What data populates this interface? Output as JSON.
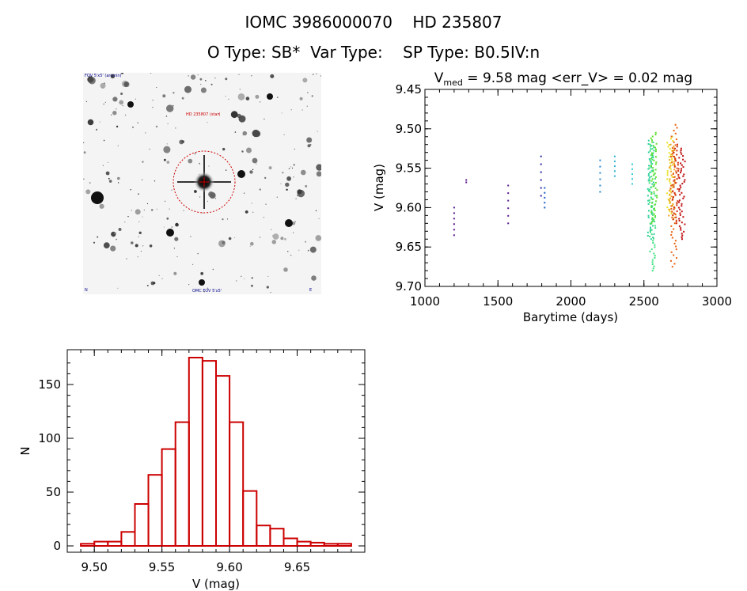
{
  "header": {
    "line1": "IOMC 3986000070    HD 235807",
    "line2": "O Type: SB*  Var Type:    SP Type: B0.5IV:n"
  },
  "image_panel": {
    "label_top_left": "FOV 5'x5' (arcmin)",
    "label_target": "HD 235807 (star)",
    "label_bottom_left": "N",
    "label_bottom_center": "OMC FOV 5'x5'",
    "label_bottom_right": "E",
    "target_color": "#cc0000"
  },
  "chart_data": [
    {
      "type": "scatter",
      "title": "V_med = 9.58 mag <err_V> = 0.02 mag",
      "title_parts": {
        "prefix": "V",
        "subscript": "med",
        "rest": " = 9.58 mag <err_V> = 0.02 mag"
      },
      "xlabel": "Barytime (days)",
      "ylabel": "V (mag)",
      "xlim": [
        1000,
        3000
      ],
      "ylim": [
        9.45,
        9.7
      ],
      "y_inverted": true,
      "xticks": [
        1000,
        1500,
        2000,
        2500,
        3000
      ],
      "yticks": [
        9.45,
        9.5,
        9.55,
        9.6,
        9.65,
        9.7
      ],
      "ytick_labels": [
        "9.45",
        "9.50",
        "9.55",
        "9.60",
        "9.65",
        "9.70"
      ],
      "color_scale": "rainbow (violet to red with increasing time)",
      "clusters": [
        {
          "x": 1200,
          "ymin": 9.6,
          "ymax": 9.635,
          "n": 6,
          "color": "#5a1a8c"
        },
        {
          "x": 1283,
          "ymin": 9.565,
          "ymax": 9.568,
          "n": 2,
          "color": "#5a1a8c"
        },
        {
          "x": 1570,
          "ymin": 9.572,
          "ymax": 9.62,
          "n": 6,
          "color": "#5a1a8c"
        },
        {
          "x": 1795,
          "ymin": 9.535,
          "ymax": 9.585,
          "n": 6,
          "color": "#2a2aa0"
        },
        {
          "x": 1820,
          "ymin": 9.575,
          "ymax": 9.6,
          "n": 5,
          "color": "#1a5ac8"
        },
        {
          "x": 2200,
          "ymin": 9.54,
          "ymax": 9.58,
          "n": 6,
          "color": "#2a8ad0"
        },
        {
          "x": 2300,
          "ymin": 9.535,
          "ymax": 9.56,
          "n": 5,
          "color": "#2ab0d0"
        },
        {
          "x": 2420,
          "ymin": 9.545,
          "ymax": 9.57,
          "n": 5,
          "color": "#30c8d8"
        },
        {
          "x": 2548,
          "ymin": 9.515,
          "ymax": 9.64,
          "n": 60,
          "color": "#30d0a0"
        },
        {
          "x": 2558,
          "ymin": 9.52,
          "ymax": 9.68,
          "n": 60,
          "color": "#40e080"
        },
        {
          "x": 2570,
          "ymin": 9.505,
          "ymax": 9.62,
          "n": 50,
          "color": "#60e030"
        },
        {
          "x": 2680,
          "ymin": 9.51,
          "ymax": 9.61,
          "n": 40,
          "color": "#e8e020"
        },
        {
          "x": 2692,
          "ymin": 9.52,
          "ymax": 9.615,
          "n": 40,
          "color": "#f0a020"
        },
        {
          "x": 2705,
          "ymin": 9.495,
          "ymax": 9.675,
          "n": 50,
          "color": "#e86010"
        },
        {
          "x": 2718,
          "ymin": 9.52,
          "ymax": 9.62,
          "n": 40,
          "color": "#d03010"
        },
        {
          "x": 2760,
          "ymin": 9.525,
          "ymax": 9.64,
          "n": 50,
          "color": "#c01010"
        }
      ]
    },
    {
      "type": "bar",
      "subtype": "histogram",
      "xlabel": "V (mag)",
      "ylabel": "N",
      "xlim": [
        9.48,
        9.7
      ],
      "ylim": [
        0,
        180
      ],
      "xticks": [
        9.5,
        9.55,
        9.6,
        9.65
      ],
      "xtick_labels": [
        "9.50",
        "9.55",
        "9.60",
        "9.65"
      ],
      "yticks": [
        0,
        50,
        100,
        150
      ],
      "ytick_labels": [
        "0",
        "50",
        "100",
        "150"
      ],
      "bin_width": 0.01,
      "bin_starts": [
        9.49,
        9.5,
        9.51,
        9.52,
        9.53,
        9.54,
        9.55,
        9.56,
        9.57,
        9.58,
        9.59,
        9.6,
        9.61,
        9.62,
        9.63,
        9.64,
        9.65,
        9.66,
        9.67,
        9.68
      ],
      "values": [
        2,
        4,
        4,
        13,
        39,
        66,
        90,
        115,
        175,
        172,
        158,
        115,
        51,
        19,
        16,
        7,
        4,
        3,
        2,
        2
      ],
      "color": "#cc0000"
    }
  ]
}
